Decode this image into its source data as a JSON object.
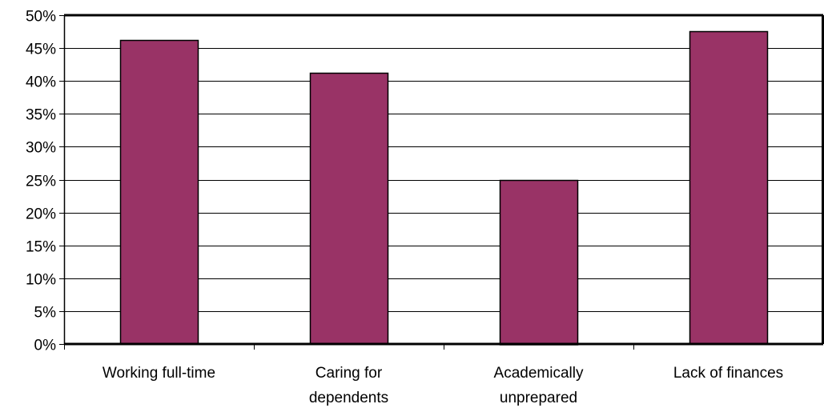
{
  "chart_data": {
    "type": "bar",
    "categories": [
      [
        "Working full-time"
      ],
      [
        "Caring for",
        "dependents"
      ],
      [
        "Academically",
        "unprepared"
      ],
      [
        "Lack of finances"
      ]
    ],
    "values": [
      46.2,
      41.3,
      25.0,
      47.6
    ],
    "value_format": "percent",
    "ylim": [
      0,
      50
    ],
    "yticks": [
      0,
      5,
      10,
      15,
      20,
      25,
      30,
      35,
      40,
      45,
      50
    ],
    "ytick_labels": [
      "0%",
      "5%",
      "10%",
      "15%",
      "20%",
      "25%",
      "30%",
      "35%",
      "40%",
      "45%",
      "50%"
    ],
    "grid": true,
    "legend": "none",
    "title": "",
    "xlabel": "",
    "ylabel": "",
    "colors": {
      "bar_fill": "#993366",
      "bar_stroke": "#000000",
      "grid": "#000000",
      "frame": "#000000",
      "background": "#ffffff"
    }
  }
}
